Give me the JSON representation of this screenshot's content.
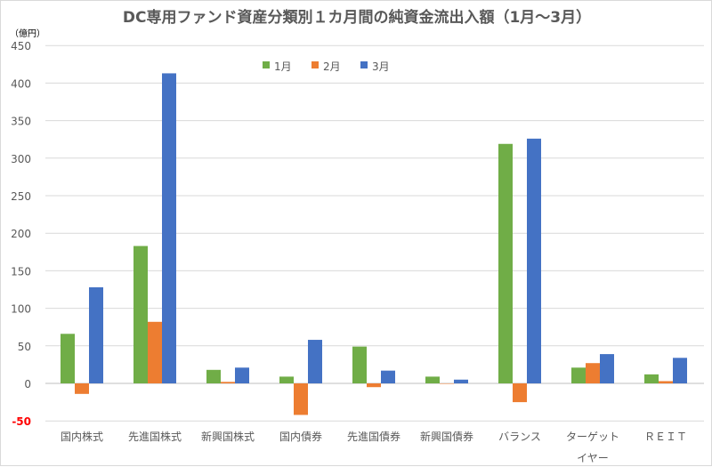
{
  "chart_data": {
    "type": "bar",
    "title": "DC専用ファンド資産分類別１カ月間の純資金流出入額（1月〜3月）",
    "ylabel": "（億円）",
    "xlabel": "",
    "ylim": [
      -50,
      450
    ],
    "yticks": [
      -50,
      0,
      50,
      100,
      150,
      200,
      250,
      300,
      350,
      400,
      450
    ],
    "grid": true,
    "legend_position": "top-center",
    "categories": [
      "国内株式",
      "先進国株式",
      "新興国株式",
      "国内債券",
      "先進国債券",
      "新興国債券",
      "バランス",
      "ターゲット\nイヤー",
      "ＲＥＩＴ"
    ],
    "series": [
      {
        "name": "1月",
        "color": "#70ad47",
        "values": [
          66,
          183,
          18,
          9,
          49,
          9,
          319,
          21,
          12
        ]
      },
      {
        "name": "2月",
        "color": "#ed7d31",
        "values": [
          -14,
          82,
          2,
          -42,
          -5,
          0,
          -25,
          27,
          3
        ]
      },
      {
        "name": "3月",
        "color": "#4472c4",
        "values": [
          128,
          413,
          21,
          58,
          17,
          5,
          326,
          39,
          34
        ]
      }
    ],
    "negative_tick_color": "#ff0000"
  }
}
